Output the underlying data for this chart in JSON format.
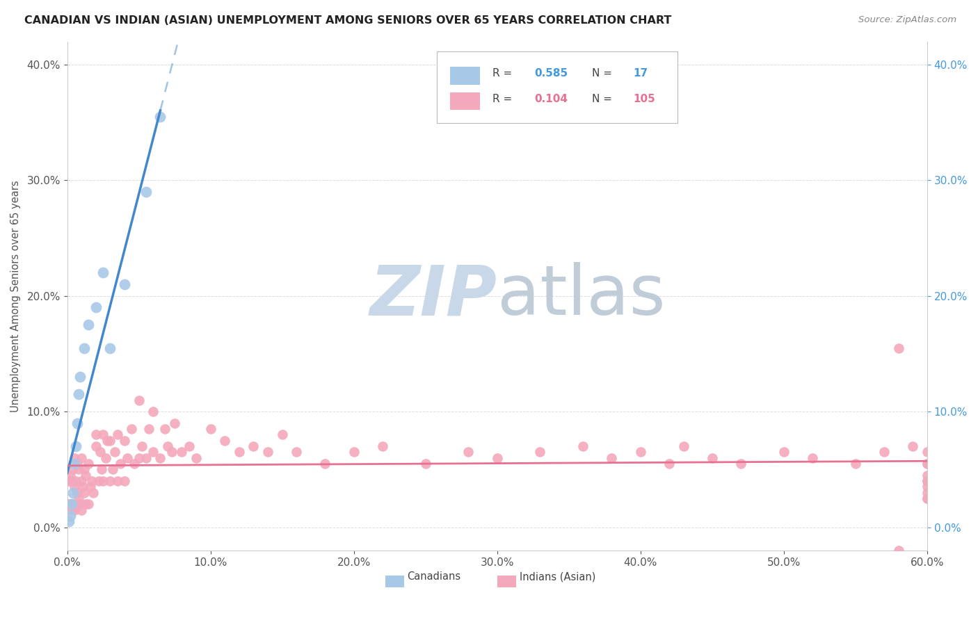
{
  "title": "CANADIAN VS INDIAN (ASIAN) UNEMPLOYMENT AMONG SENIORS OVER 65 YEARS CORRELATION CHART",
  "source": "Source: ZipAtlas.com",
  "ylabel": "Unemployment Among Seniors over 65 years",
  "xlim": [
    0.0,
    0.6
  ],
  "ylim": [
    -0.02,
    0.42
  ],
  "xlabel_vals": [
    0.0,
    0.1,
    0.2,
    0.3,
    0.4,
    0.5,
    0.6
  ],
  "ylabel_vals": [
    0.0,
    0.1,
    0.2,
    0.3,
    0.4
  ],
  "canadian_R": 0.585,
  "canadian_N": 17,
  "indian_R": 0.104,
  "indian_N": 105,
  "legend_label_1": "Canadians",
  "legend_label_2": "Indians (Asian)",
  "blue_dot_color": "#a8c8e8",
  "pink_dot_color": "#f4a8bc",
  "blue_line_color": "#4488cc",
  "pink_line_color": "#e87090",
  "blue_tick_color": "#4499dd",
  "watermark_text": "ZIPatlas",
  "watermark_color": "#dce8f0",
  "background_color": "#ffffff",
  "grid_color": "#dddddd",
  "title_color": "#222222",
  "label_color": "#555555",
  "source_color": "#888888",
  "canadians_x": [
    0.001,
    0.002,
    0.003,
    0.004,
    0.005,
    0.006,
    0.007,
    0.008,
    0.009,
    0.012,
    0.015,
    0.02,
    0.025,
    0.03,
    0.04,
    0.055,
    0.065
  ],
  "canadians_y": [
    0.005,
    0.01,
    0.02,
    0.03,
    0.055,
    0.07,
    0.09,
    0.115,
    0.13,
    0.155,
    0.175,
    0.19,
    0.22,
    0.155,
    0.21,
    0.29,
    0.355
  ],
  "indians_x": [
    0.001,
    0.001,
    0.002,
    0.002,
    0.003,
    0.003,
    0.004,
    0.004,
    0.005,
    0.005,
    0.005,
    0.006,
    0.006,
    0.007,
    0.007,
    0.008,
    0.008,
    0.009,
    0.01,
    0.01,
    0.01,
    0.011,
    0.012,
    0.012,
    0.013,
    0.013,
    0.015,
    0.015,
    0.016,
    0.017,
    0.018,
    0.02,
    0.02,
    0.022,
    0.023,
    0.024,
    0.025,
    0.025,
    0.027,
    0.028,
    0.03,
    0.03,
    0.032,
    0.033,
    0.035,
    0.035,
    0.037,
    0.04,
    0.04,
    0.042,
    0.045,
    0.047,
    0.05,
    0.05,
    0.052,
    0.055,
    0.057,
    0.06,
    0.06,
    0.065,
    0.068,
    0.07,
    0.073,
    0.075,
    0.08,
    0.085,
    0.09,
    0.1,
    0.11,
    0.12,
    0.13,
    0.14,
    0.15,
    0.16,
    0.18,
    0.2,
    0.22,
    0.25,
    0.28,
    0.3,
    0.33,
    0.36,
    0.38,
    0.4,
    0.42,
    0.43,
    0.45,
    0.47,
    0.5,
    0.52,
    0.55,
    0.57,
    0.58,
    0.58,
    0.59,
    0.6,
    0.6,
    0.6,
    0.6,
    0.6,
    0.6,
    0.6,
    0.6,
    0.6,
    0.6
  ],
  "indians_y": [
    0.02,
    0.04,
    0.02,
    0.045,
    0.015,
    0.04,
    0.02,
    0.05,
    0.015,
    0.035,
    0.06,
    0.02,
    0.04,
    0.03,
    0.055,
    0.025,
    0.05,
    0.02,
    0.015,
    0.04,
    0.06,
    0.035,
    0.03,
    0.05,
    0.02,
    0.045,
    0.02,
    0.055,
    0.035,
    0.04,
    0.03,
    0.07,
    0.08,
    0.04,
    0.065,
    0.05,
    0.04,
    0.08,
    0.06,
    0.075,
    0.04,
    0.075,
    0.05,
    0.065,
    0.04,
    0.08,
    0.055,
    0.04,
    0.075,
    0.06,
    0.085,
    0.055,
    0.06,
    0.11,
    0.07,
    0.06,
    0.085,
    0.065,
    0.1,
    0.06,
    0.085,
    0.07,
    0.065,
    0.09,
    0.065,
    0.07,
    0.06,
    0.085,
    0.075,
    0.065,
    0.07,
    0.065,
    0.08,
    0.065,
    0.055,
    0.065,
    0.07,
    0.055,
    0.065,
    0.06,
    0.065,
    0.07,
    0.06,
    0.065,
    0.055,
    0.07,
    0.06,
    0.055,
    0.065,
    0.06,
    0.055,
    0.065,
    0.155,
    -0.02,
    0.07,
    0.04,
    0.055,
    0.025,
    0.065,
    0.03,
    0.025,
    0.045,
    0.055,
    0.035,
    0.04
  ]
}
